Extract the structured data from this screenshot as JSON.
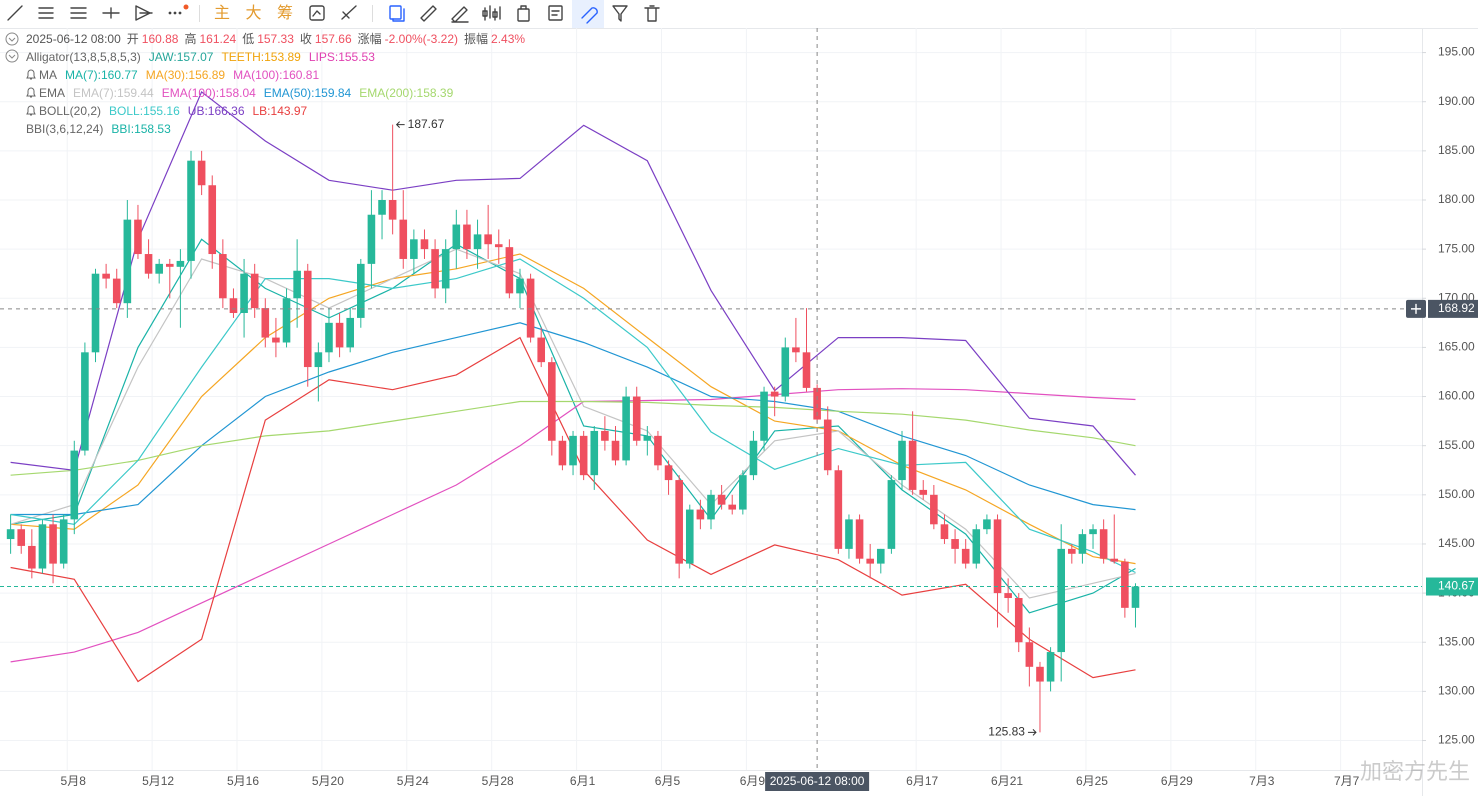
{
  "toolbar": {
    "buttons": [
      "主",
      "大",
      "筹"
    ]
  },
  "watermark": "加密方先生",
  "chart_data": {
    "type": "candlestick",
    "header": {
      "labels": [
        "开",
        "高",
        "低",
        "收",
        "涨幅",
        "振幅"
      ],
      "change": "-2.00%(-3.22)",
      "amplitude": "2.43%"
    },
    "indicators": [
      {
        "name": "Alligator(13,8,5,8,5,3)",
        "icon": "collapse",
        "items": [
          {
            "label": "JAW:",
            "value": 157.07,
            "color": "#26a69a"
          },
          {
            "label": "TEETH:",
            "value": 153.89,
            "color": "#f0a30a"
          },
          {
            "label": "LIPS:",
            "value": 155.53,
            "color": "#e040b0"
          }
        ]
      },
      {
        "name": "MA",
        "icon": "bell",
        "items": [
          {
            "label": "MA(7):",
            "value": 160.77,
            "color": "#19b3a7",
            "values": [
              147,
              148,
              165,
              176,
              171,
              168,
              171,
              175.5,
              172,
              157,
              156,
              147.5,
              156.5,
              157,
              150.5,
              146,
              138,
              140,
              142.5
            ]
          },
          {
            "label": "MA(30):",
            "value": 156.89,
            "color": "#f5a623",
            "values": [
              147,
              146.5,
              151,
              160,
              166,
              170,
              172,
              173,
              174.5,
              171,
              166,
              161,
              157.5,
              156.5,
              153,
              150.5,
              147,
              143.7,
              143
            ]
          },
          {
            "label": "MA(100):",
            "value": 160.81,
            "color": "#e251c0",
            "values": [
              133,
              134,
              136,
              139,
              142,
              145,
              148,
              151,
              155,
              159.5,
              159.6,
              159.7,
              160.2,
              160.7,
              160.8,
              160.7,
              160.3,
              159.9,
              159.7
            ]
          }
        ]
      },
      {
        "name": "EMA",
        "icon": "bell",
        "items": [
          {
            "label": "EMA(7):",
            "value": 159.44,
            "color": "#c4c4c4",
            "values": [
              147,
              149,
              163,
              174,
              172,
              169,
              172,
              175,
              172.5,
              159,
              156.5,
              149,
              155.5,
              156.5,
              151,
              146.5,
              139.5,
              141,
              142
            ]
          },
          {
            "label": "EMA(100):",
            "value": 158.04,
            "color": "#e251c0"
          },
          {
            "label": "EMA(50):",
            "value": 159.84,
            "color": "#2196d3",
            "values": [
              148,
              148,
              149,
              155,
              160,
              162.5,
              164.5,
              166,
              167.5,
              165.5,
              163,
              160,
              159.5,
              158.5,
              156,
              154,
              151,
              149,
              148.5
            ]
          },
          {
            "label": "EMA(200):",
            "value": 158.39,
            "color": "#a5d86e",
            "values": [
              152,
              152.5,
              153.5,
              155,
              156,
              156.5,
              157.5,
              158.5,
              159.5,
              159.5,
              159.4,
              159.1,
              158.9,
              158.5,
              158.2,
              157.6,
              156.6,
              155.8,
              155
            ]
          }
        ]
      },
      {
        "name": "BOLL(20,2)",
        "icon": "bell",
        "items": [
          {
            "label": "BOLL:",
            "value": 155.16,
            "color": "#3cc9c9",
            "values": [
              148,
              147,
              153.5,
              163,
              172,
              172,
              171,
              172,
              174,
              170,
              165,
              156.4,
              152.6,
              154.7,
              153,
              153.3,
              146.5,
              144.2,
              142.1
            ]
          },
          {
            "label": "UB:",
            "value": 166.36,
            "color": "#7b3fc4",
            "values": [
              153.3,
              152.5,
              176,
              191,
              186,
              182,
              181,
              182,
              182.2,
              187.6,
              184,
              170.8,
              160.6,
              166,
              166,
              165.7,
              157.8,
              157,
              152
            ]
          },
          {
            "label": "LB:",
            "value": 143.97,
            "color": "#e83f3f",
            "values": [
              142.6,
              141.4,
              131,
              135.3,
              157.6,
              161.7,
              160.7,
              162.2,
              166,
              152.5,
              145.4,
              141.9,
              144.9,
              143.4,
              139.8,
              140.9,
              135.3,
              131.4,
              132.2
            ]
          }
        ]
      },
      {
        "name": "BBI(3,6,12,24)",
        "items": [
          {
            "label": "BBI:",
            "value": 158.53,
            "color": "#19b3a7"
          }
        ]
      }
    ],
    "line_x": [
      "2025-05-05 08:00",
      "2025-05-08 08:00",
      "2025-05-11 08:00",
      "2025-05-14 08:00",
      "2025-05-17 08:00",
      "2025-05-20 08:00",
      "2025-05-23 08:00",
      "2025-05-26 08:00",
      "2025-05-29 08:00",
      "2025-06-01 08:00",
      "2025-06-04 08:00",
      "2025-06-07 08:00",
      "2025-06-10 08:00",
      "2025-06-13 08:00",
      "2025-06-16 08:00",
      "2025-06-19 08:00",
      "2025-06-22 08:00",
      "2025-06-25 08:00",
      "2025-06-27 08:00"
    ],
    "x": [
      "2025-05-05 08:00",
      "2025-05-05 20:00",
      "2025-05-06 08:00",
      "2025-05-06 20:00",
      "2025-05-07 08:00",
      "2025-05-07 20:00",
      "2025-05-08 08:00",
      "2025-05-08 20:00",
      "2025-05-09 08:00",
      "2025-05-09 20:00",
      "2025-05-10 08:00",
      "2025-05-10 20:00",
      "2025-05-11 08:00",
      "2025-05-11 20:00",
      "2025-05-12 08:00",
      "2025-05-12 20:00",
      "2025-05-13 08:00",
      "2025-05-13 20:00",
      "2025-05-14 08:00",
      "2025-05-14 20:00",
      "2025-05-15 08:00",
      "2025-05-15 20:00",
      "2025-05-16 08:00",
      "2025-05-16 20:00",
      "2025-05-17 08:00",
      "2025-05-17 20:00",
      "2025-05-18 08:00",
      "2025-05-18 20:00",
      "2025-05-19 08:00",
      "2025-05-19 20:00",
      "2025-05-20 08:00",
      "2025-05-20 20:00",
      "2025-05-21 08:00",
      "2025-05-21 20:00",
      "2025-05-22 08:00",
      "2025-05-22 20:00",
      "2025-05-23 08:00",
      "2025-05-23 20:00",
      "2025-05-24 08:00",
      "2025-05-24 20:00",
      "2025-05-25 08:00",
      "2025-05-25 20:00",
      "2025-05-26 08:00",
      "2025-05-26 20:00",
      "2025-05-27 08:00",
      "2025-05-27 20:00",
      "2025-05-28 08:00",
      "2025-05-28 20:00",
      "2025-05-29 08:00",
      "2025-05-29 20:00",
      "2025-05-30 08:00",
      "2025-05-30 20:00",
      "2025-05-31 08:00",
      "2025-05-31 20:00",
      "2025-06-01 08:00",
      "2025-06-01 20:00",
      "2025-06-02 08:00",
      "2025-06-02 20:00",
      "2025-06-03 08:00",
      "2025-06-03 20:00",
      "2025-06-04 08:00",
      "2025-06-04 20:00",
      "2025-06-05 08:00",
      "2025-06-05 20:00",
      "2025-06-06 08:00",
      "2025-06-06 20:00",
      "2025-06-07 08:00",
      "2025-06-07 20:00",
      "2025-06-08 08:00",
      "2025-06-08 20:00",
      "2025-06-09 08:00",
      "2025-06-09 20:00",
      "2025-06-10 08:00",
      "2025-06-10 20:00",
      "2025-06-11 08:00",
      "2025-06-11 20:00",
      "2025-06-12 08:00",
      "2025-06-12 20:00",
      "2025-06-13 08:00",
      "2025-06-13 20:00",
      "2025-06-14 08:00",
      "2025-06-14 20:00",
      "2025-06-15 08:00",
      "2025-06-15 20:00",
      "2025-06-16 08:00",
      "2025-06-16 20:00",
      "2025-06-17 08:00",
      "2025-06-17 20:00",
      "2025-06-18 08:00",
      "2025-06-18 20:00",
      "2025-06-19 08:00",
      "2025-06-19 20:00",
      "2025-06-20 08:00",
      "2025-06-20 20:00",
      "2025-06-21 08:00",
      "2025-06-21 20:00",
      "2025-06-22 08:00",
      "2025-06-22 20:00",
      "2025-06-23 08:00",
      "2025-06-23 20:00",
      "2025-06-24 08:00",
      "2025-06-24 20:00",
      "2025-06-25 08:00",
      "2025-06-25 20:00",
      "2025-06-26 08:00",
      "2025-06-26 20:00",
      "2025-06-27 08:00"
    ],
    "open": [
      145.5,
      146.5,
      144.8,
      142.5,
      147,
      143,
      147.5,
      154.5,
      164.5,
      172.5,
      172,
      169.5,
      178,
      174.5,
      172.5,
      173.5,
      173.2,
      173.8,
      184,
      181.5,
      174.5,
      170,
      168.5,
      172.5,
      169,
      166,
      165.5,
      170,
      172.8,
      163,
      164.5,
      167.5,
      165,
      168,
      173.5,
      178.5,
      180,
      178,
      174,
      176,
      175,
      171,
      175,
      177.5,
      175,
      176.5,
      175.5,
      175.2,
      170.5,
      172,
      166,
      163.5,
      155.5,
      153,
      156,
      152,
      156.5,
      155.5,
      153.5,
      160,
      155.5,
      156,
      153,
      151.5,
      143,
      148.5,
      147.5,
      150,
      149,
      148.5,
      152,
      155.5,
      160.5,
      160,
      165,
      164.5,
      160.88,
      157.66,
      152.5,
      144.5,
      147.5,
      143.5,
      143,
      144.5,
      151.5,
      155.5,
      150.5,
      150,
      147,
      145.5,
      144.5,
      143,
      146.5,
      147.5,
      140,
      139.5,
      135,
      132.5,
      131,
      134,
      144.5,
      144,
      146,
      146.5,
      143.5,
      143.2,
      138.5
    ],
    "high": [
      148,
      147,
      146.5,
      147.5,
      148,
      148,
      155.5,
      165.5,
      173,
      173.5,
      173,
      180,
      179.5,
      176,
      174,
      174,
      175,
      185,
      185,
      182.5,
      176,
      171,
      174,
      173.5,
      170,
      168,
      171,
      176,
      173.5,
      165.5,
      169,
      168.5,
      169,
      174,
      181,
      181,
      187.67,
      181,
      177,
      177,
      176,
      176,
      179,
      179,
      178,
      179.5,
      177,
      176,
      173,
      172.5,
      167,
      164,
      156,
      156.5,
      156.5,
      157,
      158,
      157,
      161,
      161,
      157,
      156.5,
      153.5,
      152,
      149,
      149.5,
      150.5,
      151,
      150,
      152.5,
      156.5,
      161,
      161,
      166,
      168,
      169,
      161.24,
      159,
      153,
      148,
      148,
      145,
      144.5,
      152,
      156.5,
      158.5,
      151.5,
      151,
      148,
      146.5,
      145.5,
      147,
      148,
      148,
      141.5,
      140,
      136.5,
      133,
      134.5,
      147,
      145,
      146.5,
      147,
      147.5,
      148,
      143.5,
      141
    ],
    "low": [
      144,
      144,
      141.5,
      142,
      141,
      142.5,
      146,
      154,
      163.5,
      171,
      169,
      168,
      174,
      172,
      171.5,
      170,
      167,
      172,
      180.5,
      173,
      169,
      168,
      166,
      168,
      165,
      164,
      165,
      167,
      161,
      159.5,
      163.5,
      164,
      164.5,
      167,
      171,
      176,
      176.5,
      173,
      172.5,
      174,
      170,
      169.5,
      173,
      174,
      173,
      174,
      173.5,
      170,
      169,
      165.5,
      163,
      154,
      152.5,
      152,
      151.5,
      150.5,
      154.5,
      153,
      153,
      155,
      154,
      152.5,
      150,
      141.5,
      142.5,
      146.5,
      146.5,
      148.5,
      148,
      148,
      151.5,
      154.5,
      158,
      159.5,
      163.5,
      160.5,
      157.33,
      152,
      144,
      143.5,
      143,
      141.5,
      142,
      144,
      150.5,
      150,
      149.5,
      146.5,
      145,
      143,
      142.5,
      142.5,
      146,
      136.5,
      138,
      134,
      130.5,
      125.83,
      130,
      131,
      143,
      143,
      144.5,
      143,
      143,
      137.5,
      136.5
    ],
    "close": [
      146.5,
      144.8,
      142.5,
      147,
      143,
      147.5,
      154.5,
      164.5,
      172.5,
      172,
      169.5,
      178,
      174.5,
      172.5,
      173.5,
      173.2,
      173.8,
      184,
      181.5,
      174.5,
      170,
      168.5,
      172.5,
      169,
      166,
      165.5,
      170,
      172.8,
      163,
      164.5,
      167.5,
      165,
      168,
      173.5,
      178.5,
      180,
      178,
      174,
      176,
      175,
      171,
      175,
      177.5,
      175,
      176.5,
      175.5,
      175.2,
      170.5,
      172,
      166,
      163.5,
      155.5,
      153,
      156,
      152,
      156.5,
      155.5,
      153.5,
      160,
      155.5,
      156,
      153,
      151.5,
      143,
      148.5,
      147.5,
      150,
      149,
      148.5,
      152,
      155.5,
      160.5,
      160,
      165,
      164.5,
      160.88,
      157.66,
      152.5,
      144.5,
      147.5,
      143.5,
      143,
      144.5,
      151.5,
      155.5,
      150.5,
      150,
      147,
      145.5,
      144.5,
      143,
      146.5,
      147.5,
      140,
      139.5,
      135,
      132.5,
      131,
      134,
      144.5,
      144,
      146,
      146.5,
      143.5,
      143.2,
      138.5,
      140.67
    ],
    "up_color": "#26b89a",
    "down_color": "#ef4f5f",
    "xlim": [
      "2025-05-04 20:00",
      "2025-07-10 20:00"
    ],
    "xticks": [
      {
        "value": "2025-05-08 00:00",
        "label": "5月8"
      },
      {
        "value": "2025-05-12 00:00",
        "label": "5月12"
      },
      {
        "value": "2025-05-16 00:00",
        "label": "5月16"
      },
      {
        "value": "2025-05-20 00:00",
        "label": "5月20"
      },
      {
        "value": "2025-05-24 00:00",
        "label": "5月24"
      },
      {
        "value": "2025-05-28 00:00",
        "label": "5月28"
      },
      {
        "value": "2025-06-01 00:00",
        "label": "6月1"
      },
      {
        "value": "2025-06-05 00:00",
        "label": "6月5"
      },
      {
        "value": "2025-06-09 00:00",
        "label": "6月9"
      },
      {
        "value": "2025-06-17 00:00",
        "label": "6月17"
      },
      {
        "value": "2025-06-21 00:00",
        "label": "6月21"
      },
      {
        "value": "2025-06-25 00:00",
        "label": "6月25"
      },
      {
        "value": "2025-06-29 00:00",
        "label": "6月29"
      },
      {
        "value": "2025-07-03 00:00",
        "label": "7月3"
      },
      {
        "value": "2025-07-07 00:00",
        "label": "7月7"
      }
    ],
    "ylim": [
      122,
      197.5
    ],
    "yticks": [
      {
        "value": 125,
        "label": "125.00"
      },
      {
        "value": 130,
        "label": "130.00"
      },
      {
        "value": 135,
        "label": "135.00"
      },
      {
        "value": 140,
        "label": "140.00"
      },
      {
        "value": 145,
        "label": "145.00"
      },
      {
        "value": 150,
        "label": "150.00"
      },
      {
        "value": 155,
        "label": "155.00"
      },
      {
        "value": 160,
        "label": "160.00"
      },
      {
        "value": 165,
        "label": "165.00"
      },
      {
        "value": 170,
        "label": "170.00"
      },
      {
        "value": 175,
        "label": "175.00"
      },
      {
        "value": 180,
        "label": "180.00"
      },
      {
        "value": 185,
        "label": "185.00"
      },
      {
        "value": 190,
        "label": "190.00"
      },
      {
        "value": 195,
        "label": "195.00"
      }
    ],
    "grid": true,
    "crosshair": {
      "x": "2025-06-12 08:00",
      "y": 168.92
    }
  }
}
